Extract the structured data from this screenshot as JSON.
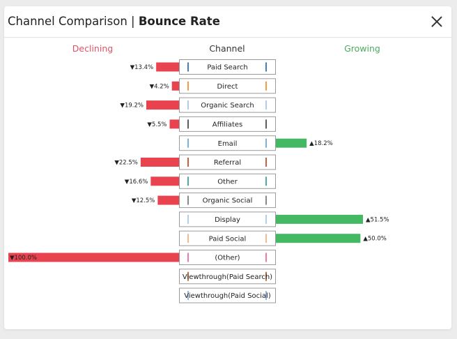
{
  "header": {
    "title": "Channel Comparison",
    "separator": "|",
    "metric": "Bounce Rate"
  },
  "columns": {
    "left": "Declining",
    "center": "Channel",
    "right": "Growing"
  },
  "colors": {
    "declining": "#e8434f",
    "growing": "#45b864",
    "header_declining": "#e05263",
    "header_growing": "#4cac5c"
  },
  "icons": {
    "close": "close-icon"
  },
  "chart_data": {
    "type": "bar",
    "title": "Bounce Rate",
    "unit": "%",
    "categories": [
      "Paid Search",
      "Direct",
      "Organic Search",
      "Affiliates",
      "Email",
      "Referral",
      "Other",
      "Organic Social",
      "Display",
      "Paid Social",
      "(Other)",
      "Viewthrough(Paid Search)",
      "Viewthrough(Paid Social)"
    ],
    "values": [
      -13.4,
      -4.2,
      -19.2,
      -5.5,
      18.2,
      -22.5,
      -16.6,
      -12.5,
      51.5,
      50.0,
      -100.0,
      null,
      null
    ],
    "value_labels": [
      "▼13.4%",
      "▼4.2%",
      "▼19.2%",
      "▼5.5%",
      "▲18.2%",
      "▼22.5%",
      "▼16.6%",
      "▼12.5%",
      "▲51.5%",
      "▲50.0%",
      "▼100.0%",
      "",
      ""
    ],
    "category_colors": [
      "#2f6fb0",
      "#f28e2b",
      "#a8c6e8",
      "#4a4a4a",
      "#6fa8d6",
      "#c0502a",
      "#3aa39a",
      "#7a7a7a",
      "#a8cbe8",
      "#f4b27a",
      "#e86b9c",
      "#c0602a",
      "#8ab0d8"
    ],
    "xlim": [
      -100,
      100
    ]
  }
}
